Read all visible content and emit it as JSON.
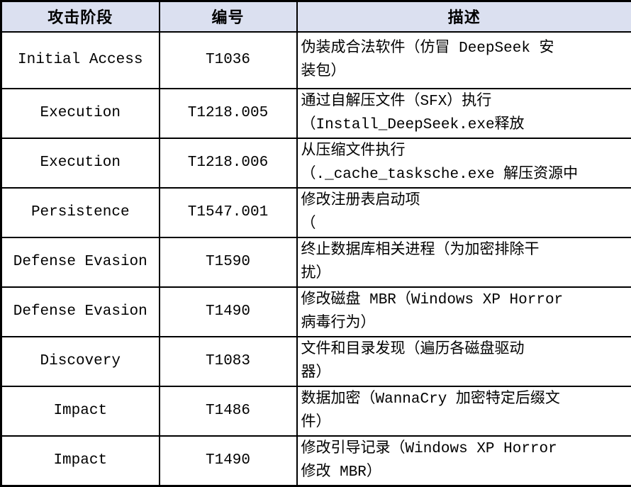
{
  "table": {
    "headers": {
      "phase": "攻击阶段",
      "id": "编号",
      "description": "描述"
    },
    "rows": [
      {
        "phase": "Initial Access",
        "id": "T1036",
        "description": "伪装成合法软件（仿冒 DeepSeek 安\n装包）"
      },
      {
        "phase": "Execution",
        "id": "T1218.005",
        "description": "通过自解压文件（SFX）执行\n（Install_DeepSeek.exe释放"
      },
      {
        "phase": "Execution",
        "id": "T1218.006",
        "description": "从压缩文件执行\n（._cache_tasksche.exe 解压资源中"
      },
      {
        "phase": "Persistence",
        "id": "T1547.001",
        "description": "修改注册表启动项\n（"
      },
      {
        "phase": "Defense Evasion",
        "id": "T1590",
        "description": "终止数据库相关进程（为加密排除干\n扰）"
      },
      {
        "phase": "Defense Evasion",
        "id": "T1490",
        "description": "修改磁盘 MBR（Windows XP Horror\n病毒行为）"
      },
      {
        "phase": "Discovery",
        "id": "T1083",
        "description": "文件和目录发现（遍历各磁盘驱动\n器）"
      },
      {
        "phase": "Impact",
        "id": "T1486",
        "description": "数据加密（WannaCry 加密特定后缀文\n件）"
      },
      {
        "phase": "Impact",
        "id": "T1490",
        "description": "修改引导记录（Windows XP Horror\n修改 MBR）"
      }
    ]
  },
  "colors": {
    "header_bg": "#dbe0f0",
    "border": "#000000",
    "text": "#000000",
    "row_bg": "#ffffff"
  }
}
